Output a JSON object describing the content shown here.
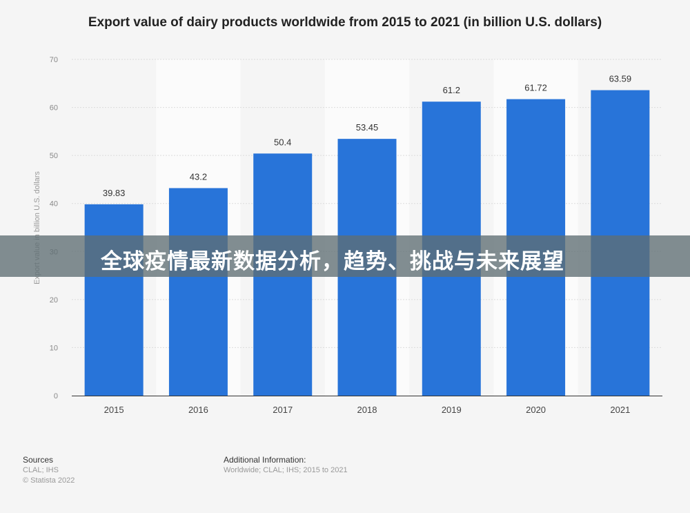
{
  "chart_data": {
    "type": "bar",
    "title": "Export value of dairy products worldwide from 2015 to 2021 (in billion U.S. dollars)",
    "xlabel": "",
    "ylabel": "Export value in billion U.S. dollars",
    "categories": [
      "2015",
      "2016",
      "2017",
      "2018",
      "2019",
      "2020",
      "2021"
    ],
    "values": [
      39.83,
      43.2,
      50.4,
      53.45,
      61.2,
      61.72,
      63.59
    ],
    "value_labels": [
      "39.83",
      "43.2",
      "50.4",
      "53.45",
      "61.2",
      "61.72",
      "63.59"
    ],
    "ylim": [
      0,
      70
    ],
    "yticks": [
      0,
      10,
      20,
      30,
      40,
      50,
      60,
      70
    ],
    "grid": true,
    "bar_color": "#2874d9"
  },
  "banner": {
    "text": "全球疫情最新数据分析，趋势、挑战与未来展望"
  },
  "footer": {
    "sources_heading": "Sources",
    "sources_line1": "CLAL; IHS",
    "sources_line2": "© Statista 2022",
    "additional_heading": "Additional Information:",
    "additional_line1": "Worldwide; CLAL; IHS; 2015 to 2021"
  }
}
